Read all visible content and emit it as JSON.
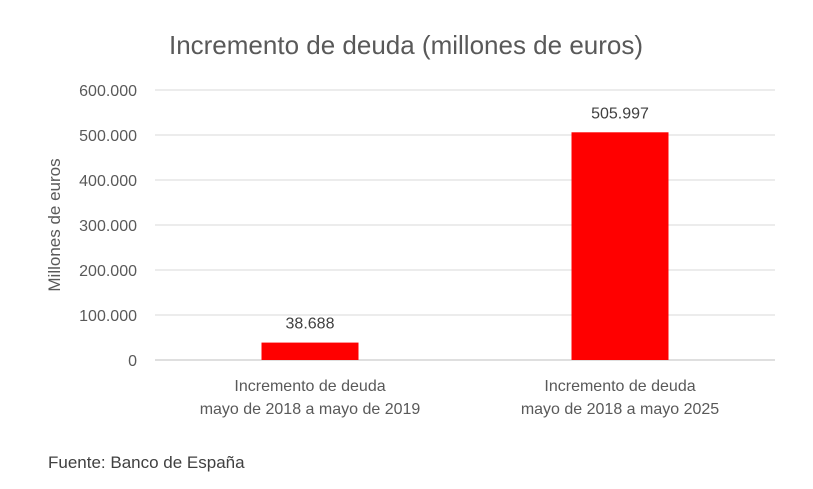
{
  "chart_data": {
    "type": "bar",
    "title": "Incremento de deuda (millones de euros)",
    "xlabel": "",
    "ylabel": "Millones de euros",
    "ylim": [
      0,
      600000
    ],
    "yticks": [
      0,
      100000,
      200000,
      300000,
      400000,
      500000,
      600000
    ],
    "ytick_labels": [
      "0",
      "100.000",
      "200.000",
      "300.000",
      "400.000",
      "500.000",
      "600.000"
    ],
    "grid": true,
    "categories": [
      [
        "Incremento de deuda",
        "mayo de 2018 a mayo de 2019"
      ],
      [
        "Incremento de deuda",
        "mayo de 2018 a mayo 2025"
      ]
    ],
    "values": [
      38688,
      505997
    ],
    "data_labels": [
      "38.688",
      "505.997"
    ],
    "bar_color": "#FF0000",
    "legend": "none"
  },
  "source": "Fuente: Banco de España"
}
